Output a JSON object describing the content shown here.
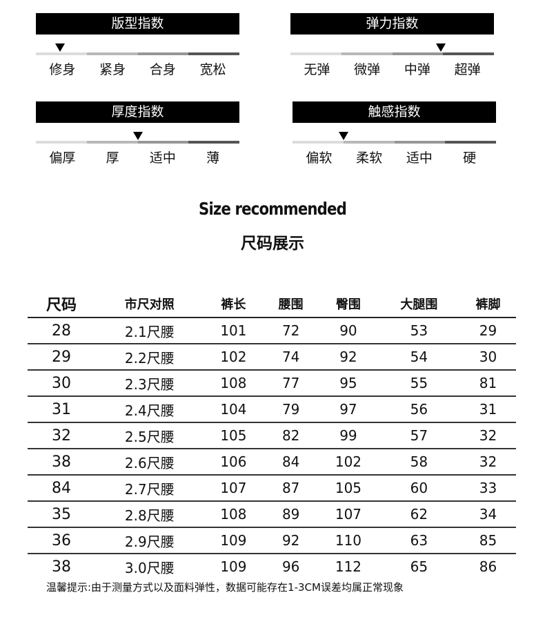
{
  "indices": [
    {
      "title": "版型指数",
      "labels": [
        "修身",
        "紧身",
        "合身",
        "宽松"
      ],
      "level": 0.12
    },
    {
      "title": "弹力指数",
      "labels": [
        "无弹",
        "微弹",
        "中弹",
        "超弹"
      ],
      "level": 0.74
    },
    {
      "title": "厚度指数",
      "labels": [
        "偏厚",
        "厚",
        "适中",
        "薄"
      ],
      "level": 0.5
    },
    {
      "title": "触感指数",
      "labels": [
        "偏软",
        "柔软",
        "适中",
        "硬"
      ],
      "level": 0.25
    }
  ],
  "segment_colors": [
    "#dcdcdc",
    "#b8b8b8",
    "#969696",
    "#555555"
  ],
  "title_en": "Size recommended",
  "title_cn": "尺码展示",
  "table": {
    "headers": [
      "尺码",
      "市尺对照",
      "裤长",
      "腰围",
      "臀围",
      "大腿围",
      "裤脚"
    ],
    "rows": [
      [
        "28",
        "2.1尺腰",
        "101",
        "72",
        "90",
        "53",
        "29"
      ],
      [
        "29",
        "2.2尺腰",
        "102",
        "74",
        "92",
        "54",
        "30"
      ],
      [
        "30",
        "2.3尺腰",
        "108",
        "77",
        "95",
        "55",
        "81"
      ],
      [
        "31",
        "2.4尺腰",
        "104",
        "79",
        "97",
        "56",
        "31"
      ],
      [
        "32",
        "2.5尺腰",
        "105",
        "82",
        "99",
        "57",
        "32"
      ],
      [
        "38",
        "2.6尺腰",
        "106",
        "84",
        "102",
        "58",
        "32"
      ],
      [
        "84",
        "2.7尺腰",
        "107",
        "87",
        "105",
        "60",
        "33"
      ],
      [
        "35",
        "2.8尺腰",
        "108",
        "89",
        "107",
        "62",
        "34"
      ],
      [
        "36",
        "2.9尺腰",
        "109",
        "92",
        "110",
        "63",
        "85"
      ],
      [
        "38",
        "3.0尺腰",
        "109",
        "96",
        "112",
        "65",
        "86"
      ]
    ]
  },
  "note": "温馨提示:由于测量方式以及面料弹性，数据可能存在1-3CM误差均属正常现象"
}
